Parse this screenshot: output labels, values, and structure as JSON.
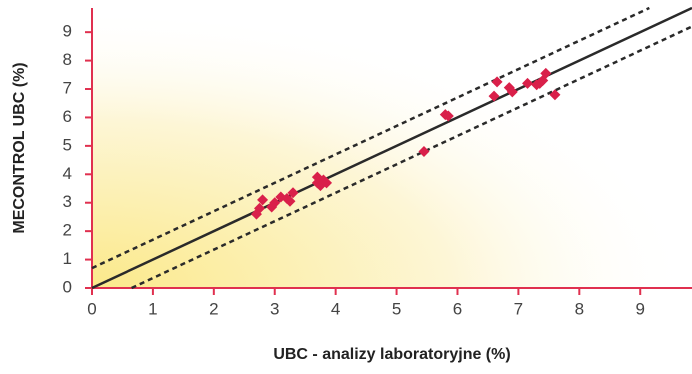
{
  "chart_data": {
    "type": "scatter",
    "x_label": "UBC - analizy laboratoryjne (%)",
    "y_label": "MECONTROL UBC (%)",
    "xlim": [
      0,
      9.85
    ],
    "ylim": [
      0,
      9.85
    ],
    "xticks": [
      0,
      1,
      2,
      3,
      4,
      5,
      6,
      7,
      8,
      9
    ],
    "yticks": [
      0,
      1,
      2,
      3,
      4,
      5,
      6,
      7,
      8,
      9
    ],
    "axis_color": "#e0304f",
    "series": [
      {
        "color": "#d9204a",
        "x": [
          2.7,
          2.75,
          2.8,
          2.95,
          3.0,
          3.1,
          3.2,
          3.25,
          3.3,
          3.7,
          3.7,
          3.75,
          3.8,
          3.85,
          5.45,
          5.8,
          5.85,
          6.6,
          6.65,
          6.85,
          6.9,
          7.15,
          7.3,
          7.35,
          7.4,
          7.45,
          7.6
        ],
        "values": [
          2.6,
          2.8,
          3.1,
          2.85,
          3.0,
          3.2,
          3.15,
          3.05,
          3.35,
          3.7,
          3.9,
          3.6,
          3.8,
          3.7,
          4.8,
          6.1,
          6.05,
          6.75,
          7.25,
          7.05,
          6.9,
          7.2,
          7.15,
          7.2,
          7.3,
          7.55,
          6.8
        ]
      }
    ],
    "lines": [
      {
        "style": "solid",
        "color": "#2a2a2a",
        "x": [
          0,
          9.85
        ],
        "y": [
          0,
          9.85
        ]
      },
      {
        "style": "dashed",
        "color": "#2a2a2a",
        "x": [
          0,
          9.15
        ],
        "y": [
          0.7,
          9.85
        ]
      },
      {
        "style": "dashed",
        "color": "#2a2a2a",
        "x": [
          0.65,
          9.85
        ],
        "y": [
          0,
          9.2
        ]
      }
    ]
  }
}
